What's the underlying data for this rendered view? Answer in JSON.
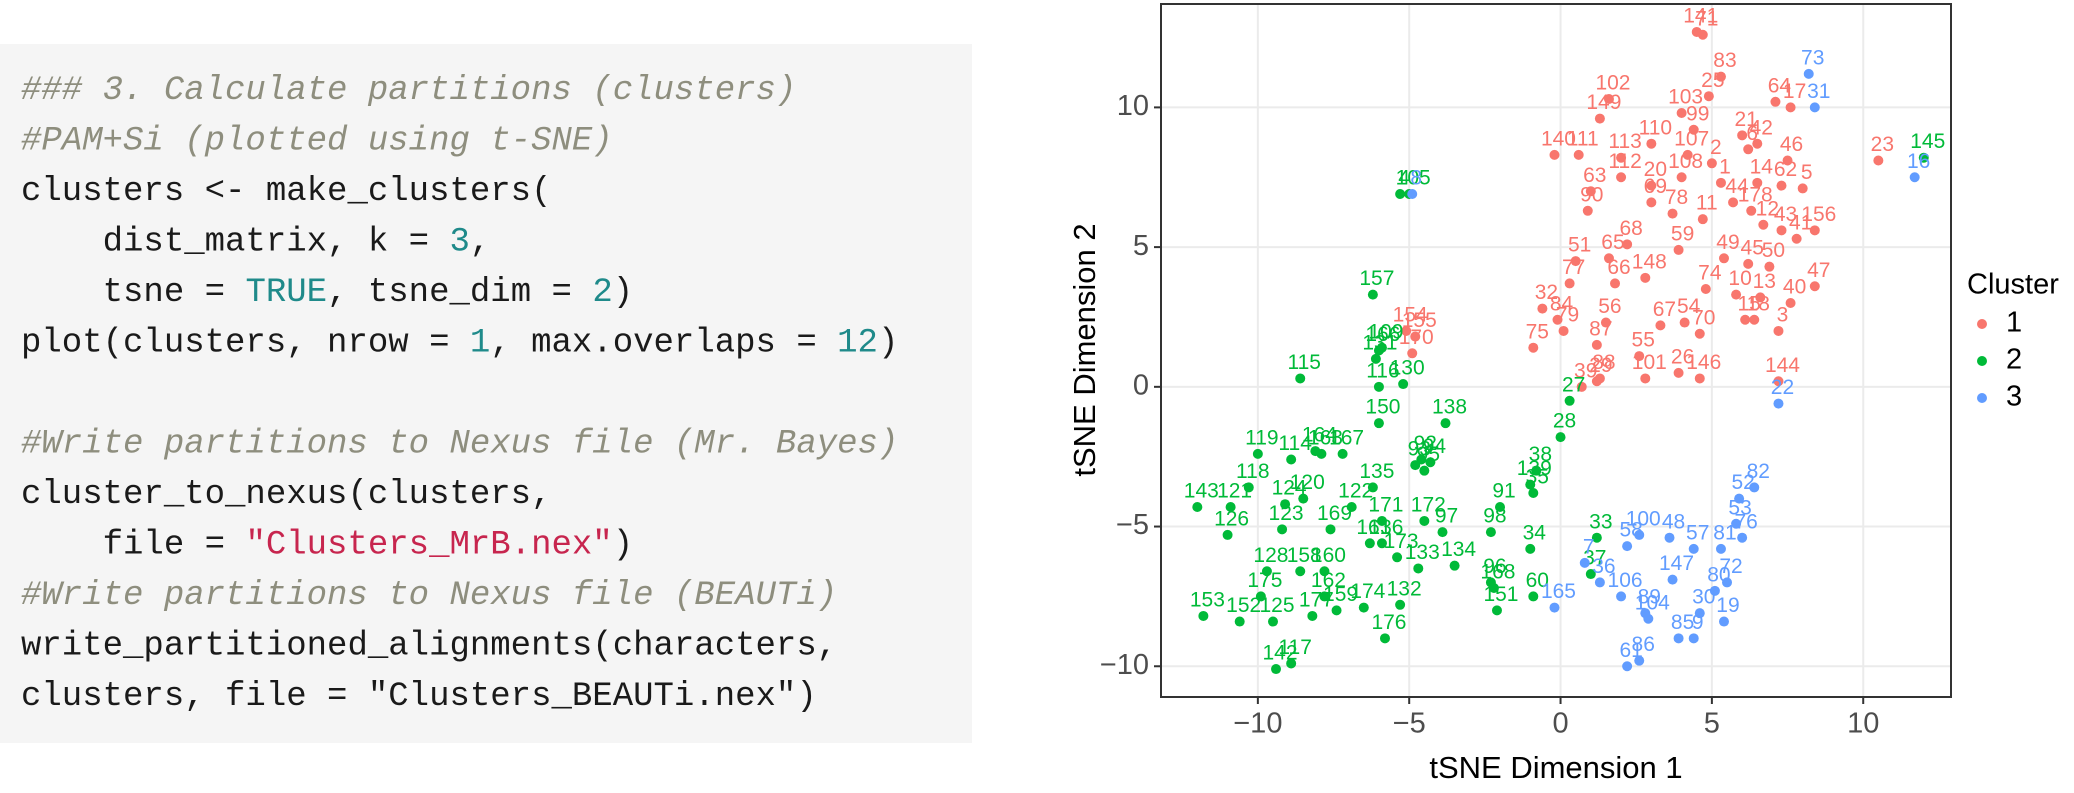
{
  "code": {
    "lines": [
      [
        {
          "text": "### 3. Calculate partitions (clusters)",
          "color": "#8e8e7e",
          "italic": true
        }
      ],
      [
        {
          "text": "#PAM+Si (plotted using t-SNE)",
          "color": "#8e8e7e",
          "italic": true
        }
      ],
      [
        {
          "text": "clusters <- make_clusters(",
          "color": "#1a1a1a"
        }
      ],
      [
        {
          "text": "    dist_matrix, k = ",
          "color": "#1a1a1a"
        },
        {
          "text": "3",
          "color": "#1f8a8a"
        },
        {
          "text": ",",
          "color": "#1a1a1a"
        }
      ],
      [
        {
          "text": "    tsne = ",
          "color": "#1a1a1a"
        },
        {
          "text": "TRUE",
          "color": "#1f8a8a"
        },
        {
          "text": ", tsne_dim = ",
          "color": "#1a1a1a"
        },
        {
          "text": "2",
          "color": "#1f8a8a"
        },
        {
          "text": ")",
          "color": "#1a1a1a"
        }
      ],
      [
        {
          "text": "plot(clusters, nrow = ",
          "color": "#1a1a1a"
        },
        {
          "text": "1",
          "color": "#1f8a8a"
        },
        {
          "text": ", max.overlaps = ",
          "color": "#1a1a1a"
        },
        {
          "text": "12",
          "color": "#1f8a8a"
        },
        {
          "text": ")",
          "color": "#1a1a1a"
        }
      ],
      [],
      [
        {
          "text": "#Write partitions to Nexus file (Mr. Bayes)",
          "color": "#8e8e7e",
          "italic": true
        }
      ],
      [
        {
          "text": "cluster_to_nexus(clusters,",
          "color": "#1a1a1a"
        }
      ],
      [
        {
          "text": "    file = ",
          "color": "#1a1a1a"
        },
        {
          "text": "\"Clusters_MrB.nex\"",
          "color": "#c7254e"
        },
        {
          "text": ")",
          "color": "#1a1a1a"
        }
      ],
      [
        {
          "text": "#Write partitions to Nexus file (BEAUTi)",
          "color": "#8e8e7e",
          "italic": true
        }
      ],
      [
        {
          "text": "write_partitioned_alignments(characters,",
          "color": "#1a1a1a"
        }
      ],
      [
        {
          "text": "clusters, file = \"Clusters_BEAUTi.nex\")",
          "color": "#1a1a1a"
        }
      ]
    ]
  },
  "chart_data": {
    "type": "scatter",
    "x_label": "tSNE Dimension 1",
    "y_label": "tSNE Dimension 2",
    "legend_title": "Cluster",
    "legend": "right",
    "grid": true,
    "xlim": [
      -13.2,
      12.9
    ],
    "ylim": [
      -11.1,
      13.7
    ],
    "xticks": [
      {
        "value": -10,
        "label": "−10"
      },
      {
        "value": -5,
        "label": "−5"
      },
      0,
      5,
      10
    ],
    "yticks": [
      {
        "value": -10,
        "label": "−10"
      },
      {
        "value": -5,
        "label": "−5"
      },
      0,
      5,
      10
    ],
    "series": [
      {
        "name": "1",
        "color": "#F8766D",
        "labels": [
          "141",
          "71",
          "83",
          "25",
          "64",
          "17",
          "102",
          "149",
          "103",
          "99",
          "21",
          "42",
          "6",
          "2",
          "110",
          "113",
          "107",
          "46",
          "140",
          "111",
          "23",
          "14",
          "62",
          "5",
          "63",
          "112",
          "20",
          "108",
          "1",
          "44",
          "90",
          "69",
          "78",
          "11",
          "178",
          "12",
          "43",
          "41",
          "156",
          "51",
          "65",
          "68",
          "59",
          "49",
          "45",
          "50",
          "148",
          "66",
          "77",
          "74",
          "32",
          "84",
          "56",
          "67",
          "54",
          "10",
          "13",
          "47",
          "40",
          "70",
          "18",
          "3",
          "79",
          "87",
          "55",
          "75",
          "88",
          "29",
          "26",
          "39",
          "101",
          "146",
          "15",
          "144",
          "154",
          "155",
          "170"
        ],
        "x": [
          4.5,
          4.7,
          5.3,
          4.9,
          7.1,
          7.6,
          1.6,
          1.3,
          4.0,
          4.4,
          6.0,
          6.5,
          6.2,
          5.0,
          3.0,
          2.0,
          4.2,
          7.5,
          -0.2,
          0.6,
          10.5,
          6.5,
          7.3,
          8.0,
          1.0,
          2.0,
          3.0,
          4.0,
          5.3,
          5.7,
          0.9,
          3.0,
          3.7,
          4.7,
          6.3,
          6.7,
          7.3,
          7.8,
          8.4,
          0.5,
          1.6,
          2.2,
          3.9,
          5.4,
          6.2,
          6.9,
          2.8,
          1.8,
          0.3,
          4.8,
          -0.6,
          -0.1,
          1.5,
          3.3,
          4.1,
          5.8,
          6.6,
          8.4,
          7.6,
          4.6,
          6.4,
          7.2,
          0.1,
          1.2,
          2.6,
          -0.9,
          1.3,
          1.2,
          3.9,
          0.7,
          2.8,
          4.6,
          6.1,
          7.2,
          -5.1,
          -4.8,
          -4.9
        ],
        "values": [
          12.7,
          12.6,
          11.1,
          10.4,
          10.2,
          10.0,
          10.3,
          9.6,
          9.8,
          9.2,
          9.0,
          8.7,
          8.5,
          8.0,
          8.7,
          8.2,
          8.3,
          8.1,
          8.3,
          8.3,
          8.1,
          7.3,
          7.2,
          7.1,
          7.0,
          7.5,
          7.2,
          7.5,
          7.3,
          6.6,
          6.3,
          6.6,
          6.2,
          6.0,
          6.3,
          5.8,
          5.6,
          5.3,
          5.6,
          4.5,
          4.6,
          5.1,
          4.9,
          4.6,
          4.4,
          4.3,
          3.9,
          3.7,
          3.7,
          3.5,
          2.8,
          2.4,
          2.3,
          2.2,
          2.3,
          3.3,
          3.2,
          3.6,
          3.0,
          1.9,
          2.4,
          2.0,
          2.0,
          1.5,
          1.1,
          1.4,
          0.3,
          0.2,
          0.5,
          0.0,
          0.3,
          0.3,
          2.4,
          0.2,
          2.0,
          1.8,
          1.2
        ]
      },
      {
        "name": "2",
        "color": "#00BA38",
        "labels": [
          "145",
          "4",
          "105",
          "157",
          "109",
          "166",
          "131",
          "115",
          "116",
          "130",
          "92",
          "138",
          "93",
          "94",
          "95",
          "27",
          "28",
          "38",
          "139",
          "35",
          "91",
          "34",
          "33",
          "98",
          "97",
          "172",
          "114",
          "164",
          "119",
          "118",
          "163",
          "167",
          "135",
          "143",
          "121",
          "124",
          "120",
          "122",
          "171",
          "126",
          "123",
          "169",
          "161",
          "136",
          "173",
          "134",
          "128",
          "158",
          "160",
          "133",
          "96",
          "168",
          "37",
          "153",
          "175",
          "162",
          "174",
          "132",
          "151",
          "152",
          "125",
          "177",
          "159",
          "176",
          "60",
          "117",
          "142",
          "150"
        ],
        "x": [
          12.0,
          -5.3,
          -5.0,
          -6.2,
          -5.9,
          -6.0,
          -6.1,
          -8.6,
          -6.0,
          -5.2,
          -4.6,
          -3.8,
          -4.8,
          -4.3,
          -4.5,
          0.3,
          0.0,
          -0.8,
          -1.0,
          -0.9,
          -2.0,
          -1.0,
          1.2,
          -2.3,
          -3.9,
          -4.5,
          -8.9,
          -8.1,
          -10.0,
          -10.3,
          -7.9,
          -7.2,
          -6.2,
          -12.0,
          -10.9,
          -9.1,
          -8.5,
          -6.9,
          -5.9,
          -11.0,
          -9.2,
          -7.6,
          -6.3,
          -5.9,
          -5.4,
          -3.5,
          -9.7,
          -8.6,
          -7.8,
          -4.7,
          -2.3,
          -2.2,
          1.0,
          -11.8,
          -9.9,
          -7.8,
          -6.5,
          -5.3,
          -2.1,
          -10.6,
          -9.5,
          -8.2,
          -7.4,
          -5.8,
          -0.9,
          -8.9,
          -9.4,
          -6.0
        ],
        "values": [
          8.2,
          6.9,
          6.9,
          3.3,
          1.4,
          1.3,
          1.0,
          0.3,
          0.0,
          0.1,
          -2.6,
          -1.3,
          -2.8,
          -2.7,
          -3.0,
          -0.5,
          -1.8,
          -3.0,
          -3.5,
          -3.8,
          -4.3,
          -5.8,
          -5.4,
          -5.2,
          -5.2,
          -4.8,
          -2.6,
          -2.3,
          -2.4,
          -3.6,
          -2.4,
          -2.4,
          -3.6,
          -4.3,
          -4.3,
          -4.2,
          -4.0,
          -4.3,
          -4.8,
          -5.3,
          -5.1,
          -5.1,
          -5.6,
          -5.6,
          -6.1,
          -6.4,
          -6.6,
          -6.6,
          -6.6,
          -6.5,
          -7.0,
          -7.2,
          -6.7,
          -8.2,
          -7.5,
          -7.5,
          -7.9,
          -7.8,
          -8.0,
          -8.4,
          -8.4,
          -8.2,
          -8.0,
          -9.0,
          -7.5,
          -9.9,
          -10.1,
          -1.3
        ]
      },
      {
        "name": "3",
        "color": "#619CFF",
        "labels": [
          "8",
          "73",
          "31",
          "16",
          "22",
          "100",
          "48",
          "52",
          "82",
          "53",
          "76",
          "58",
          "57",
          "81",
          "7",
          "36",
          "147",
          "80",
          "72",
          "106",
          "89",
          "30",
          "19",
          "165",
          "104",
          "85",
          "9",
          "61",
          "86"
        ],
        "x": [
          -4.9,
          8.2,
          8.4,
          11.7,
          7.2,
          2.6,
          3.6,
          5.9,
          6.4,
          5.8,
          6.0,
          2.2,
          4.4,
          5.3,
          0.8,
          1.3,
          3.7,
          5.1,
          5.5,
          2.0,
          2.8,
          4.6,
          5.4,
          -0.2,
          2.9,
          3.9,
          4.4,
          2.2,
          2.6
        ],
        "values": [
          6.9,
          11.2,
          10.0,
          7.5,
          -0.6,
          -5.3,
          -5.4,
          -4.0,
          -3.6,
          -4.9,
          -5.4,
          -5.7,
          -5.8,
          -5.8,
          -6.3,
          -7.0,
          -6.9,
          -7.3,
          -7.0,
          -7.5,
          -8.1,
          -8.1,
          -8.4,
          -7.9,
          -8.3,
          -9.0,
          -9.0,
          -10.0,
          -9.8
        ]
      }
    ]
  }
}
